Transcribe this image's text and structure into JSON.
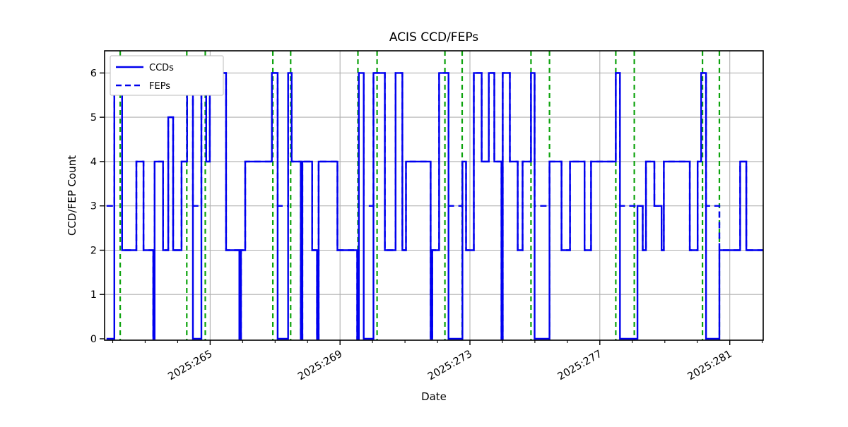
{
  "title": "ACIS CCD/FEPs",
  "colors": {
    "line": "#0000ee",
    "event": "#0da30d",
    "grid": "#b0b0b0",
    "spine": "#000000",
    "legend_border": "#bbbbbb"
  },
  "legend": {
    "items": [
      {
        "label": "CCDs",
        "style": "solid"
      },
      {
        "label": "FEPs",
        "style": "dashed"
      }
    ]
  },
  "chart_data": {
    "type": "line",
    "subtype": "step",
    "title": "ACIS CCD/FEPs",
    "xlabel": "Date",
    "ylabel": "CCD/FEP Count",
    "grid": true,
    "legend_position": "upper left",
    "x_axis": {
      "lim": [
        261.75,
        282.03
      ],
      "major_ticks": [
        265,
        269,
        273,
        277,
        281
      ],
      "major_tick_labels": [
        "2025:265",
        "2025:269",
        "2025:273",
        "2025:277",
        "2025:281"
      ],
      "minor_tick_step": 1,
      "tick_label_rotation_deg": 30
    },
    "y_axis": {
      "lim": [
        0,
        6.5
      ],
      "ticks": [
        0,
        1,
        2,
        3,
        4,
        5,
        6
      ]
    },
    "series": [
      {
        "name": "CCDs",
        "style": "solid",
        "color": "#0000ee",
        "x_end": 282.03,
        "steps": [
          [
            261.81,
            0
          ],
          [
            262.05,
            6
          ],
          [
            262.29,
            2
          ],
          [
            262.73,
            4
          ],
          [
            262.95,
            2
          ],
          [
            263.25,
            0
          ],
          [
            263.29,
            4
          ],
          [
            263.55,
            2
          ],
          [
            263.71,
            5
          ],
          [
            263.86,
            2
          ],
          [
            264.12,
            4
          ],
          [
            264.29,
            6
          ],
          [
            264.47,
            0
          ],
          [
            264.73,
            6
          ],
          [
            264.88,
            4
          ],
          [
            264.99,
            6
          ],
          [
            265.49,
            2
          ],
          [
            265.9,
            0
          ],
          [
            265.95,
            2
          ],
          [
            266.08,
            4
          ],
          [
            266.9,
            6
          ],
          [
            267.08,
            0
          ],
          [
            267.4,
            6
          ],
          [
            267.51,
            4
          ],
          [
            267.79,
            0
          ],
          [
            267.84,
            4
          ],
          [
            268.14,
            2
          ],
          [
            268.29,
            0
          ],
          [
            268.34,
            4
          ],
          [
            268.92,
            2
          ],
          [
            269.53,
            0
          ],
          [
            269.58,
            6
          ],
          [
            269.73,
            0
          ],
          [
            270.03,
            6
          ],
          [
            270.38,
            2
          ],
          [
            270.71,
            6
          ],
          [
            270.92,
            2
          ],
          [
            271.03,
            4
          ],
          [
            271.79,
            0
          ],
          [
            271.84,
            2
          ],
          [
            272.05,
            6
          ],
          [
            272.34,
            0
          ],
          [
            272.77,
            4
          ],
          [
            272.88,
            2
          ],
          [
            273.12,
            6
          ],
          [
            273.36,
            4
          ],
          [
            273.58,
            6
          ],
          [
            273.75,
            4
          ],
          [
            273.97,
            0
          ],
          [
            274.01,
            6
          ],
          [
            274.23,
            4
          ],
          [
            274.47,
            2
          ],
          [
            274.62,
            4
          ],
          [
            274.88,
            6
          ],
          [
            274.99,
            0
          ],
          [
            275.45,
            4
          ],
          [
            275.82,
            2
          ],
          [
            276.08,
            4
          ],
          [
            276.53,
            2
          ],
          [
            276.73,
            4
          ],
          [
            277.49,
            6
          ],
          [
            277.62,
            0
          ],
          [
            278.16,
            3
          ],
          [
            278.32,
            2
          ],
          [
            278.42,
            4
          ],
          [
            278.68,
            3
          ],
          [
            278.9,
            2
          ],
          [
            278.97,
            4
          ],
          [
            279.77,
            2
          ],
          [
            280.01,
            4
          ],
          [
            280.12,
            6
          ],
          [
            280.27,
            0
          ],
          [
            280.68,
            2
          ],
          [
            281.32,
            4
          ],
          [
            281.51,
            2
          ]
        ]
      },
      {
        "name": "FEPs",
        "style": "dashed",
        "color": "#0000ee",
        "rule": "identical to CCDs except holds value 3 during extended CCD=0 intervals",
        "zero_override_value": 3,
        "override_min_duration_days": 0.1
      }
    ],
    "event_lines": {
      "name": "radzone-markers",
      "color": "#0da30d",
      "style": "dashed",
      "x": [
        262.23,
        264.28,
        264.85,
        266.93,
        267.48,
        269.55,
        270.14,
        272.23,
        272.76,
        274.88,
        275.45,
        277.49,
        278.06,
        280.16,
        280.68
      ]
    }
  }
}
